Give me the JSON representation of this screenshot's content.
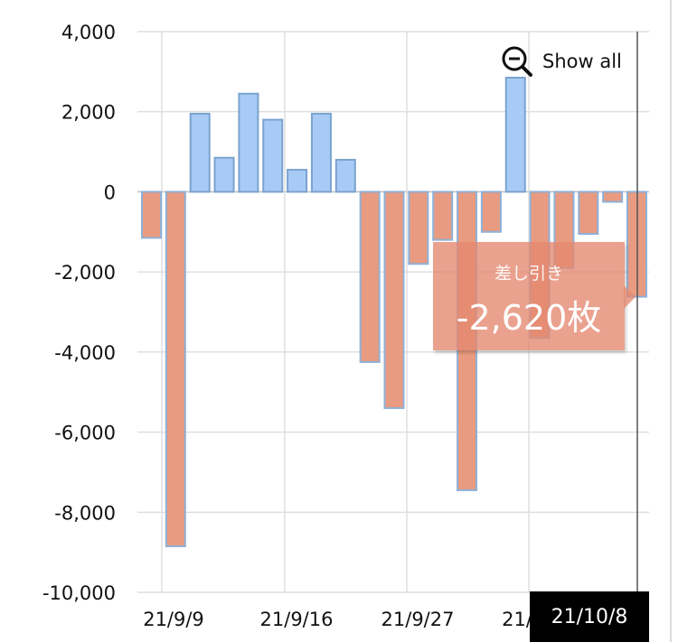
{
  "chart_data": {
    "type": "bar",
    "title": "",
    "xlabel": "",
    "ylabel": "",
    "ylim": [
      -10000,
      4000
    ],
    "yticks": [
      4000,
      2000,
      0,
      -2000,
      -4000,
      -6000,
      -8000,
      -10000
    ],
    "ytick_labels": [
      "4,000",
      "2,000",
      "0",
      "-2,000",
      "-4,000",
      "-6,000",
      "-8,000",
      "-10,000"
    ],
    "xtick_labels": [
      "21/9/9",
      "21/9/16",
      "21/9/27",
      "21/"
    ],
    "grid": true,
    "values": [
      -1150,
      -8850,
      1950,
      850,
      2450,
      1800,
      550,
      1950,
      800,
      -4250,
      -5400,
      -1800,
      -1200,
      -7450,
      -1000,
      2850,
      -3650,
      -1900,
      -1050,
      -250,
      -2620
    ],
    "colors": {
      "positive": "#a8cbf5",
      "negative": "#e89b80"
    }
  },
  "controls": {
    "show_all_label": "Show all",
    "show_all_icon": "zoom-out-icon"
  },
  "tooltip": {
    "title": "差し引き",
    "value": "-2,620枚"
  },
  "cursor_date": "21/10/8"
}
